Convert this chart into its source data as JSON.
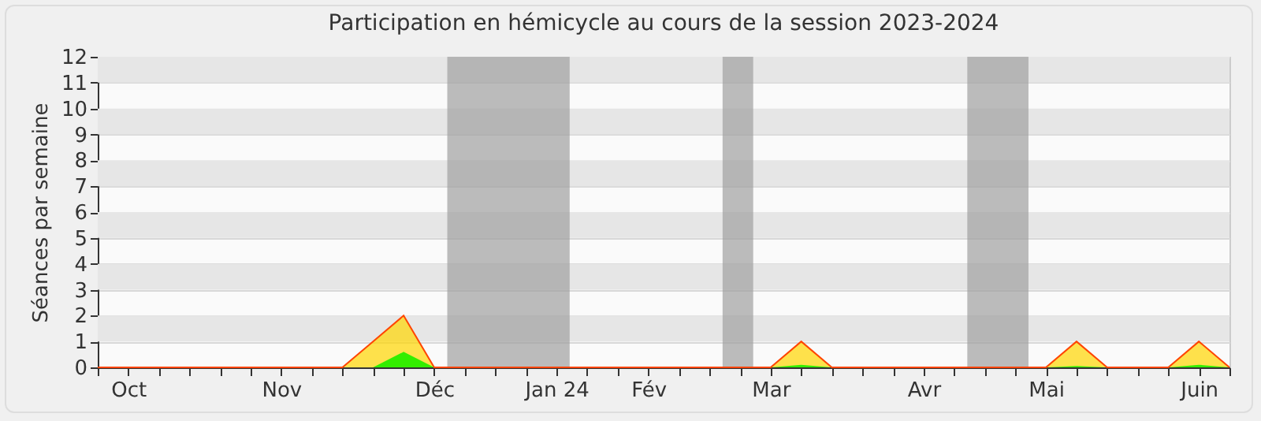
{
  "chart_data": {
    "type": "area",
    "title": "Participation en hémicycle au cours de la session 2023-2024",
    "ylabel": "Séances par semaine",
    "x": [
      "2023-09-30",
      "2023-10-07",
      "2023-10-14",
      "2023-10-21",
      "2023-10-28",
      "2023-11-04",
      "2023-11-11",
      "2023-11-18",
      "2023-11-25",
      "2023-12-02",
      "2023-12-09",
      "2023-12-16",
      "2023-12-23",
      "2023-12-30",
      "2024-01-06",
      "2024-01-13",
      "2024-01-20",
      "2024-01-27",
      "2024-02-03",
      "2024-02-10",
      "2024-02-17",
      "2024-02-24",
      "2024-03-02",
      "2024-03-09",
      "2024-03-16",
      "2024-03-23",
      "2024-03-30",
      "2024-04-06",
      "2024-04-13",
      "2024-04-20",
      "2024-04-27",
      "2024-05-04",
      "2024-05-11",
      "2024-05-18",
      "2024-05-25",
      "2024-06-01",
      "2024-06-08",
      "2024-06-15"
    ],
    "series": [
      {
        "color": "#ffd500",
        "values": [
          0,
          0,
          0,
          0,
          0,
          0,
          0,
          0,
          0,
          1,
          2,
          0,
          0,
          0,
          0,
          0,
          0,
          0,
          0,
          0,
          0,
          0,
          0,
          1,
          0,
          0,
          0,
          0,
          0,
          0,
          0,
          0,
          1,
          0,
          0,
          0,
          1,
          0
        ]
      },
      {
        "color": "#33ee00",
        "values": [
          0,
          0,
          0,
          0,
          0,
          0,
          0,
          0,
          0,
          0,
          0.6,
          0,
          0,
          0,
          0,
          0,
          0,
          0,
          0,
          0,
          0,
          0,
          0,
          0.1,
          0,
          0,
          0,
          0,
          0,
          0,
          0,
          0,
          0.05,
          0,
          0,
          0,
          0.1,
          0
        ]
      }
    ],
    "xlim": [
      "2023-09-30",
      "2024-06-15"
    ],
    "xticks": [
      {
        "value": "2023-09-30",
        "label": null
      },
      {
        "value": "2023-10-07",
        "label": "Oct"
      },
      {
        "value": "2023-10-14",
        "label": null
      },
      {
        "value": "2023-10-21",
        "label": null
      },
      {
        "value": "2023-10-28",
        "label": null
      },
      {
        "value": "2023-11-04",
        "label": null
      },
      {
        "value": "2023-11-11",
        "label": "Nov"
      },
      {
        "value": "2023-11-18",
        "label": null
      },
      {
        "value": "2023-11-25",
        "label": null
      },
      {
        "value": "2023-12-02",
        "label": null
      },
      {
        "value": "2023-12-09",
        "label": null
      },
      {
        "value": "2023-12-16",
        "label": "Déc"
      },
      {
        "value": "2023-12-23",
        "label": null
      },
      {
        "value": "2023-12-30",
        "label": null
      },
      {
        "value": "2024-01-06",
        "label": null
      },
      {
        "value": "2024-01-13",
        "label": "Jan 24"
      },
      {
        "value": "2024-01-20",
        "label": null
      },
      {
        "value": "2024-01-27",
        "label": null
      },
      {
        "value": "2024-02-03",
        "label": "Fév"
      },
      {
        "value": "2024-02-10",
        "label": null
      },
      {
        "value": "2024-02-17",
        "label": null
      },
      {
        "value": "2024-02-24",
        "label": null
      },
      {
        "value": "2024-03-02",
        "label": "Mar"
      },
      {
        "value": "2024-03-09",
        "label": null
      },
      {
        "value": "2024-03-16",
        "label": null
      },
      {
        "value": "2024-03-23",
        "label": null
      },
      {
        "value": "2024-03-30",
        "label": null
      },
      {
        "value": "2024-04-06",
        "label": "Avr"
      },
      {
        "value": "2024-04-13",
        "label": null
      },
      {
        "value": "2024-04-20",
        "label": null
      },
      {
        "value": "2024-04-27",
        "label": null
      },
      {
        "value": "2024-05-04",
        "label": "Mai"
      },
      {
        "value": "2024-05-11",
        "label": null
      },
      {
        "value": "2024-05-18",
        "label": null
      },
      {
        "value": "2024-05-25",
        "label": null
      },
      {
        "value": "2024-06-01",
        "label": null
      },
      {
        "value": "2024-06-08",
        "label": "Juin"
      },
      {
        "value": "2024-06-15",
        "label": null
      }
    ],
    "ylim": [
      0,
      12
    ],
    "yticks": [
      0,
      1,
      2,
      3,
      4,
      5,
      6,
      7,
      8,
      9,
      10,
      11,
      12
    ],
    "grid": "y",
    "bands": [
      {
        "axis": "x",
        "from": "2023-12-19",
        "to": "2024-01-16",
        "color": "#a0a0a0"
      },
      {
        "axis": "x",
        "from": "2024-02-20",
        "to": "2024-02-27",
        "color": "#a0a0a0"
      },
      {
        "axis": "x",
        "from": "2024-04-16",
        "to": "2024-04-30",
        "color": "#a0a0a0"
      }
    ]
  }
}
